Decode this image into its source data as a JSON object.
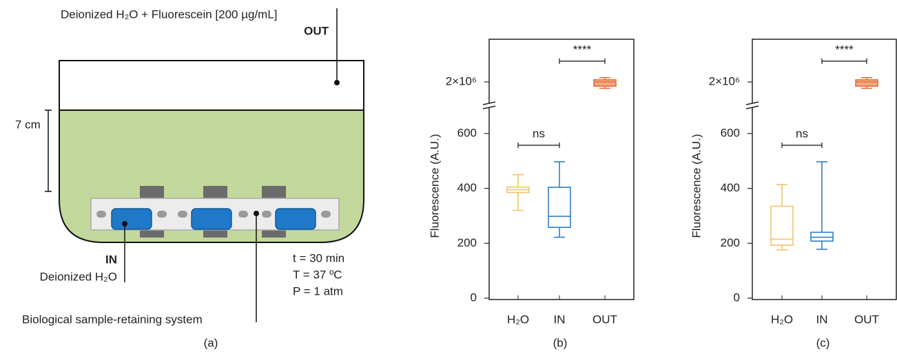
{
  "diagram": {
    "top_label": "Deionized H₂O + Fluorescein [200 µg/mL]",
    "out_label": "OUT",
    "depth_label": "7 cm",
    "in_label": "IN",
    "in_sublabel": "Deionized H₂O",
    "conditions": [
      "t = 30 min",
      "T = 37 ºC",
      "P = 1 atm"
    ],
    "system_label": "Biological sample-retaining system",
    "panel_label": "(a)"
  },
  "chart_data": [
    {
      "type": "box",
      "panel_label": "(b)",
      "ylabel": "Fluorescence (A.U.)",
      "categories": [
        "H₂O",
        "IN",
        "OUT"
      ],
      "colors": [
        "#f2c46d",
        "#2f7fc8",
        "#e8703a"
      ],
      "values": [
        {
          "min": 320,
          "q1": 385,
          "median": 395,
          "q3": 405,
          "max": 450
        },
        {
          "min": 222,
          "q1": 258,
          "median": 298,
          "q3": 404,
          "max": 497
        },
        {
          "min": 1970000,
          "q1": 1980000,
          "median": 2000000,
          "q3": 2010000,
          "max": 2020000
        }
      ],
      "pair_labels": [
        "ns",
        "****"
      ],
      "ylim": [
        0,
        2200000
      ],
      "ybreak": [
        690,
        1900000
      ],
      "yticks": [
        0,
        200,
        400,
        600,
        {
          "value": 2000000,
          "label": "2×10⁶"
        }
      ]
    },
    {
      "type": "box",
      "panel_label": "(c)",
      "ylabel": "Fluorescence (A.U.)",
      "categories": [
        "H₂O",
        "IN",
        "OUT"
      ],
      "colors": [
        "#f2c46d",
        "#2f7fc8",
        "#e8703a"
      ],
      "values": [
        {
          "min": 176,
          "q1": 193,
          "median": 215,
          "q3": 335,
          "max": 414
        },
        {
          "min": 178,
          "q1": 208,
          "median": 222,
          "q3": 240,
          "max": 497
        },
        {
          "min": 1970000,
          "q1": 1980000,
          "median": 2000000,
          "q3": 2010000,
          "max": 2020000
        }
      ],
      "pair_labels": [
        "ns",
        "****"
      ],
      "ylim": [
        0,
        2200000
      ],
      "ybreak": [
        690,
        1900000
      ],
      "yticks": [
        0,
        200,
        400,
        600,
        {
          "value": 2000000,
          "label": "2×10⁶"
        }
      ]
    }
  ]
}
